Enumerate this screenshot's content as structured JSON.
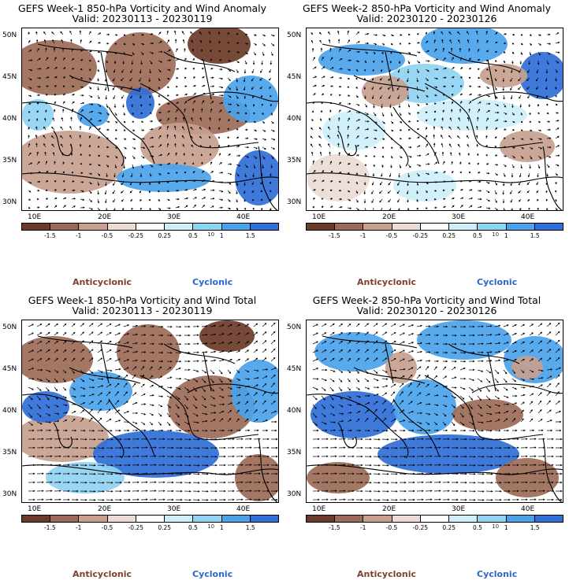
{
  "colors": {
    "anticyclonic_strong": "#6b3a28",
    "anticyclonic_mid": "#9c6a57",
    "anticyclonic_light": "#c7a08f",
    "anticyclonic_faint": "#ecdcd4",
    "neutral": "#ffffff",
    "cyclonic_faint": "#cdeffa",
    "cyclonic_light": "#8fd3f2",
    "cyclonic_mid": "#4aa3ea",
    "cyclonic_strong": "#2f6fd8",
    "anticyclonic_label": "#7b4030",
    "cyclonic_label": "#2a66cc"
  },
  "colorbar": {
    "segments": [
      "#6b3a28",
      "#9c6a57",
      "#c7a08f",
      "#ecdcd4",
      "#ffffff",
      "#cdeffa",
      "#8fd3f2",
      "#4aa3ea",
      "#2f6fd8"
    ],
    "ticks": [
      "-1.5",
      "-1",
      "-0.5",
      "-0.25",
      "0.25",
      "0.5",
      "1",
      "1.5"
    ],
    "unit_label": "10"
  },
  "lat_labels": [
    "50N",
    "45N",
    "40N",
    "35N",
    "30N"
  ],
  "lon_labels": [
    "10E",
    "20E",
    "30E",
    "40E"
  ],
  "legend": {
    "anticyclonic": "Anticyclonic",
    "cyclonic": "Cyclonic"
  },
  "panels": [
    {
      "title1": "GEFS Week-1 850-hPa Vorticity and Wind Anomaly",
      "title2": "Valid: 20230113 - 20230119"
    },
    {
      "title1": "GEFS Week-2 850-hPa Vorticity and Wind Anomaly",
      "title2": "Valid: 20230120 - 20230126"
    },
    {
      "title1": "GEFS Week-1 850-hPa Vorticity and Wind Total",
      "title2": "Valid: 20230113 - 20230119"
    },
    {
      "title1": "GEFS Week-2 850-hPa Vorticity and Wind Total",
      "title2": "Valid: 20230120 - 20230126"
    }
  ]
}
